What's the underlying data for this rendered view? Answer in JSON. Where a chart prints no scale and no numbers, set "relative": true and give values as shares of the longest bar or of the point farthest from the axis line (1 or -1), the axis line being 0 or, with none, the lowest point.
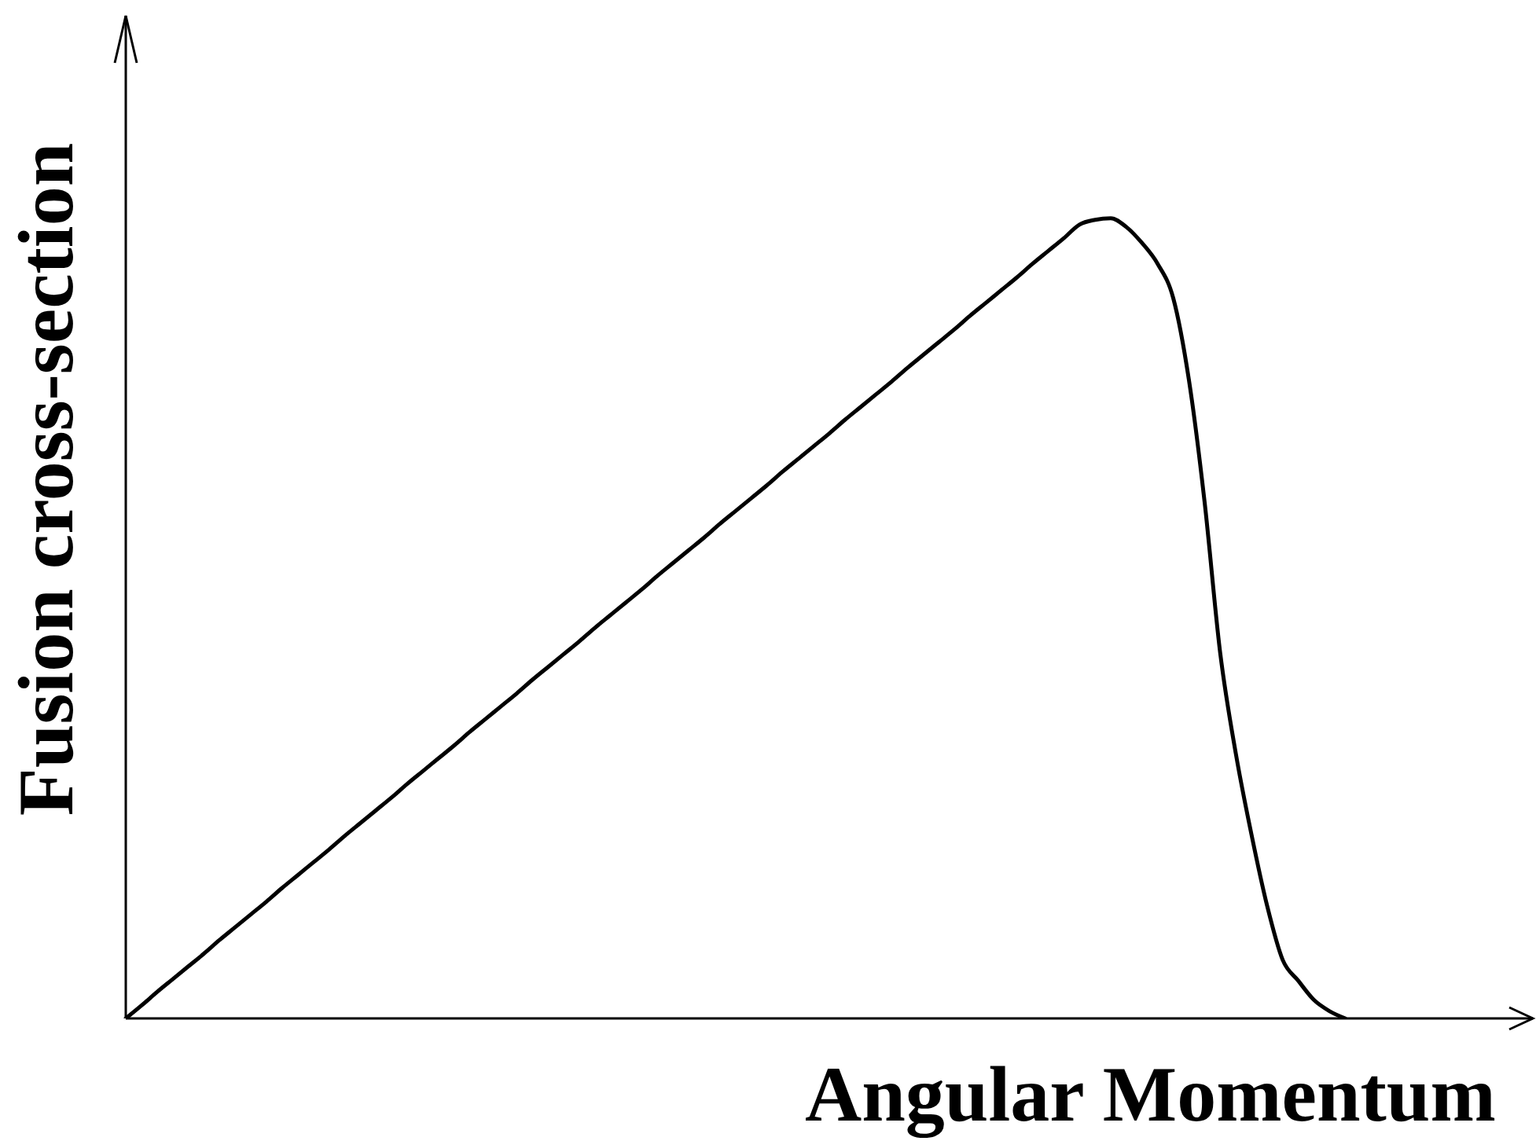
{
  "chart_data": {
    "type": "line",
    "relative": true,
    "xlabel": "Angular Momentum",
    "ylabel": "Fusion cross-section",
    "marker": "none",
    "line_style": "solid",
    "categories": [
      null,
      null,
      null,
      null,
      null,
      null,
      null,
      null,
      null,
      null,
      null,
      null,
      null,
      null,
      null,
      null,
      null,
      null,
      null,
      null,
      null,
      null,
      null,
      null,
      null,
      null,
      null,
      null,
      null,
      null,
      null,
      null,
      null,
      null,
      null,
      null,
      null,
      null,
      null,
      null,
      null,
      null,
      null,
      null,
      null,
      null,
      null,
      null,
      null,
      null,
      null,
      null,
      null,
      null,
      null,
      null,
      null,
      null,
      null,
      null,
      null,
      null,
      null,
      null,
      null,
      null,
      null,
      null,
      null,
      null,
      null,
      null,
      null,
      null,
      null,
      null,
      null,
      null,
      null,
      null,
      null,
      null,
      null,
      null,
      null,
      null,
      null,
      null,
      null,
      null,
      null
    ],
    "color": "#000000",
    "values": [
      0,
      0.016,
      0.033,
      0.049,
      0.065,
      0.081,
      0.098,
      0.114,
      0.13,
      0.146,
      0.163,
      0.179,
      0.195,
      0.211,
      0.228,
      0.244,
      0.26,
      0.276,
      0.293,
      0.309,
      0.325,
      0.341,
      0.358,
      0.374,
      0.39,
      0.406,
      0.423,
      0.439,
      0.455,
      0.471,
      0.488,
      0.504,
      0.52,
      0.536,
      0.553,
      0.569,
      0.585,
      0.601,
      0.618,
      0.634,
      0.65,
      0.666,
      0.683,
      0.699,
      0.715,
      0.731,
      0.748,
      0.764,
      0.78,
      0.796,
      0.813,
      0.829,
      0.845,
      0.861,
      0.878,
      0.894,
      0.91,
      0.926,
      0.943,
      0.959,
      0.975,
      0.992,
      0.998,
      1,
      0.989,
      0.969,
      0.943,
      0.9,
      0.798,
      0.646,
      0.457,
      0.331,
      0.23,
      0.141,
      0.073,
      0.047,
      0.023,
      0.009,
      0,
      null,
      null,
      null,
      null,
      null,
      null,
      null,
      null,
      null,
      null,
      null,
      null
    ]
  }
}
